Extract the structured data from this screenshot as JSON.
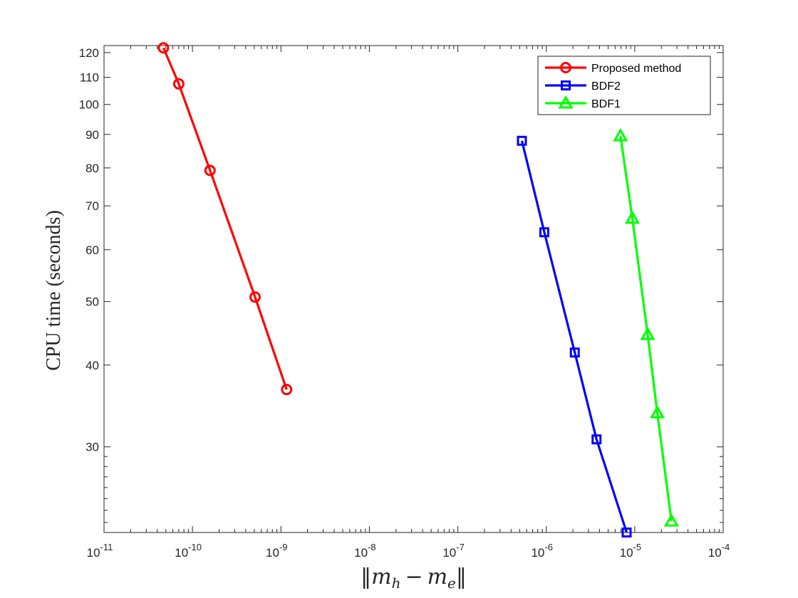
{
  "chart_data": {
    "type": "line",
    "title": "",
    "xlabel": "‖m_h − m_e‖",
    "xlabel_parts": {
      "open": "‖",
      "m1": "m",
      "sub1": "h",
      "minus": "−",
      "m2": "m",
      "sub2": "e",
      "close": "‖"
    },
    "ylabel": "CPU time (seconds)",
    "xscale": "log",
    "yscale": "log",
    "xlim": [
      1e-11,
      0.0001
    ],
    "ylim": [
      22.2,
      123
    ],
    "x_ticks": [
      {
        "value": 1e-11,
        "base": "10",
        "exp": "-11"
      },
      {
        "value": 1e-10,
        "base": "10",
        "exp": "-10"
      },
      {
        "value": 1e-09,
        "base": "10",
        "exp": "-9"
      },
      {
        "value": 1e-08,
        "base": "10",
        "exp": "-8"
      },
      {
        "value": 1e-07,
        "base": "10",
        "exp": "-7"
      },
      {
        "value": 1e-06,
        "base": "10",
        "exp": "-6"
      },
      {
        "value": 1e-05,
        "base": "10",
        "exp": "-5"
      },
      {
        "value": 0.0001,
        "base": "10",
        "exp": "-4"
      }
    ],
    "y_ticks": [
      {
        "value": 30,
        "label": "30"
      },
      {
        "value": 40,
        "label": "40"
      },
      {
        "value": 50,
        "label": "50"
      },
      {
        "value": 60,
        "label": "60"
      },
      {
        "value": 70,
        "label": "70"
      },
      {
        "value": 80,
        "label": "80"
      },
      {
        "value": 90,
        "label": "90"
      },
      {
        "value": 100,
        "label": "100"
      },
      {
        "value": 110,
        "label": "110"
      },
      {
        "value": 120,
        "label": "120"
      }
    ],
    "grid": false,
    "legend_position": "top-right",
    "series": [
      {
        "name": "Proposed method",
        "color": "#ff0000",
        "marker": "circle",
        "x": [
          4.7e-11,
          7e-11,
          1.58e-10,
          5.1e-10,
          1.16e-09
        ],
        "y": [
          122,
          107.5,
          79.3,
          50.8,
          36.7
        ]
      },
      {
        "name": "BDF2",
        "color": "#0000ff",
        "marker": "square",
        "x": [
          5.3e-07,
          9.5e-07,
          2.1e-06,
          3.7e-06,
          8.1e-06
        ],
        "y": [
          88,
          63.8,
          41.8,
          30.8,
          22.2
        ]
      },
      {
        "name": "BDF1",
        "color": "#00ff00",
        "marker": "triangle",
        "x": [
          6.9e-06,
          9.4e-06,
          1.4e-05,
          1.8e-05,
          2.6e-05
        ],
        "y": [
          89.5,
          67,
          44.5,
          33.8,
          23.1
        ]
      }
    ]
  }
}
